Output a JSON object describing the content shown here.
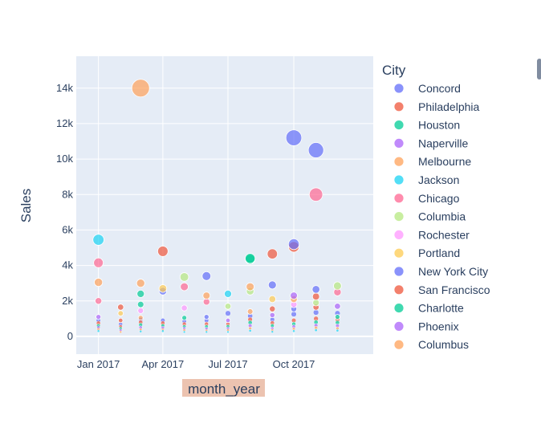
{
  "chart_data": {
    "type": "scatter",
    "xlabel": "month_year",
    "ylabel": "Sales",
    "x_ticks": [
      "Jan 2017",
      "Apr 2017",
      "Jul 2017",
      "Oct 2017"
    ],
    "x_tick_dates": [
      "2017-01-01",
      "2017-04-01",
      "2017-07-01",
      "2017-10-01"
    ],
    "x_range": [
      "2016-12-01",
      "2018-01-20"
    ],
    "y_ticks": [
      0,
      2000,
      4000,
      6000,
      8000,
      10000,
      12000,
      14000
    ],
    "y_tick_labels": [
      "0",
      "2k",
      "4k",
      "6k",
      "8k",
      "10k",
      "12k",
      "14k"
    ],
    "ylim": [
      -1000,
      15800
    ],
    "grid": true,
    "legend_title": "City",
    "legend_position": "right",
    "series": [
      {
        "name": "Concord",
        "color": "#636efa",
        "points": [
          {
            "x": "2017-10-01",
            "y": 11200
          },
          {
            "x": "2017-11-01",
            "y": 10500
          },
          {
            "x": "2017-06-01",
            "y": 3400
          },
          {
            "x": "2017-09-01",
            "y": 2900
          },
          {
            "x": "2017-11-01",
            "y": 2650
          },
          {
            "x": "2017-04-01",
            "y": 2550
          }
        ]
      },
      {
        "name": "Philadelphia",
        "color": "#ef553b",
        "points": [
          {
            "x": "2017-04-01",
            "y": 4800
          },
          {
            "x": "2017-09-01",
            "y": 4650
          },
          {
            "x": "2017-10-01",
            "y": 5050
          },
          {
            "x": "2017-11-01",
            "y": 2250
          },
          {
            "x": "2017-09-01",
            "y": 1550
          }
        ]
      },
      {
        "name": "Houston",
        "color": "#00cc96",
        "points": [
          {
            "x": "2017-08-01",
            "y": 4350
          },
          {
            "x": "2017-03-01",
            "y": 2400
          },
          {
            "x": "2017-03-01",
            "y": 1800
          }
        ]
      },
      {
        "name": "Naperville",
        "color": "#ab63fa",
        "points": [
          {
            "x": "2017-10-01",
            "y": 2300
          },
          {
            "x": "2017-12-01",
            "y": 1700
          },
          {
            "x": "2017-01-01",
            "y": 1100
          }
        ]
      },
      {
        "name": "Melbourne",
        "color": "#ffa15a",
        "points": [
          {
            "x": "2017-03-01",
            "y": 14000
          },
          {
            "x": "2017-03-01",
            "y": 3000
          },
          {
            "x": "2017-01-01",
            "y": 3050
          },
          {
            "x": "2017-08-01",
            "y": 2800
          },
          {
            "x": "2017-06-01",
            "y": 2300
          }
        ]
      },
      {
        "name": "Jackson",
        "color": "#19d3f3",
        "points": [
          {
            "x": "2017-01-01",
            "y": 5450
          },
          {
            "x": "2017-07-01",
            "y": 2400
          }
        ]
      },
      {
        "name": "Chicago",
        "color": "#ff6692",
        "points": [
          {
            "x": "2017-11-01",
            "y": 8000
          },
          {
            "x": "2017-01-01",
            "y": 4150
          },
          {
            "x": "2017-05-01",
            "y": 2800
          },
          {
            "x": "2017-01-01",
            "y": 2000
          },
          {
            "x": "2017-12-01",
            "y": 2500
          },
          {
            "x": "2017-06-01",
            "y": 1950
          }
        ]
      },
      {
        "name": "Columbia",
        "color": "#b6e880",
        "points": [
          {
            "x": "2017-05-01",
            "y": 3350
          },
          {
            "x": "2017-12-01",
            "y": 2850
          },
          {
            "x": "2017-08-01",
            "y": 2550
          },
          {
            "x": "2017-07-01",
            "y": 1700
          },
          {
            "x": "2017-11-01",
            "y": 1900
          }
        ]
      },
      {
        "name": "Rochester",
        "color": "#ff97ff",
        "points": [
          {
            "x": "2017-05-01",
            "y": 1600
          },
          {
            "x": "2017-03-01",
            "y": 1450
          },
          {
            "x": "2017-10-01",
            "y": 1800
          }
        ]
      },
      {
        "name": "Portland",
        "color": "#fecb52",
        "points": [
          {
            "x": "2017-04-01",
            "y": 2700
          },
          {
            "x": "2017-09-01",
            "y": 2100
          },
          {
            "x": "2017-02-01",
            "y": 1300
          }
        ]
      },
      {
        "name": "New York City",
        "color": "#636efa",
        "points": [
          {
            "x": "2017-10-01",
            "y": 5200
          },
          {
            "x": "2017-10-01",
            "y": 1550
          },
          {
            "x": "2017-06-01",
            "y": 1100
          }
        ]
      },
      {
        "name": "San Francisco",
        "color": "#ef553b",
        "points": [
          {
            "x": "2017-02-01",
            "y": 1650
          },
          {
            "x": "2017-11-01",
            "y": 1650
          },
          {
            "x": "2017-02-01",
            "y": 900
          }
        ]
      },
      {
        "name": "Charlotte",
        "color": "#00cc96",
        "points": [
          {
            "x": "2017-08-01",
            "y": 4400
          },
          {
            "x": "2017-12-01",
            "y": 1100
          },
          {
            "x": "2017-05-01",
            "y": 1050
          }
        ]
      },
      {
        "name": "Phoenix",
        "color": "#ab63fa",
        "points": [
          {
            "x": "2017-09-01",
            "y": 1200
          },
          {
            "x": "2017-07-01",
            "y": 900
          }
        ]
      },
      {
        "name": "Columbus",
        "color": "#ffa15a",
        "points": [
          {
            "x": "2017-10-01",
            "y": 2100
          },
          {
            "x": "2017-08-01",
            "y": 1400
          },
          {
            "x": "2017-03-01",
            "y": 1050
          }
        ]
      }
    ],
    "small_points": [
      {
        "x": "2017-01-01",
        "values": [
          900,
          750,
          600,
          500,
          400,
          300
        ]
      },
      {
        "x": "2017-02-01",
        "values": [
          700,
          550,
          450,
          350,
          250
        ]
      },
      {
        "x": "2017-03-01",
        "values": [
          950,
          800,
          650,
          500,
          380,
          280
        ]
      },
      {
        "x": "2017-04-01",
        "values": [
          900,
          750,
          600,
          480,
          380,
          300
        ]
      },
      {
        "x": "2017-05-01",
        "values": [
          850,
          700,
          550,
          450,
          350,
          250
        ]
      },
      {
        "x": "2017-06-01",
        "values": [
          900,
          700,
          550,
          430,
          330,
          250
        ]
      },
      {
        "x": "2017-07-01",
        "values": [
          1300,
          700,
          560,
          450,
          350,
          250
        ]
      },
      {
        "x": "2017-08-01",
        "values": [
          1150,
          950,
          780,
          600,
          450,
          320
        ]
      },
      {
        "x": "2017-09-01",
        "values": [
          950,
          760,
          600,
          450,
          350,
          260
        ]
      },
      {
        "x": "2017-10-01",
        "values": [
          1250,
          900,
          700,
          550,
          420,
          300
        ]
      },
      {
        "x": "2017-11-01",
        "values": [
          1350,
          1000,
          800,
          620,
          480,
          350
        ]
      },
      {
        "x": "2017-12-01",
        "values": [
          1300,
          950,
          780,
          600,
          450,
          330
        ]
      }
    ]
  },
  "palette": [
    "#636efa",
    "#ef553b",
    "#00cc96",
    "#ab63fa",
    "#ffa15a",
    "#19d3f3",
    "#ff6692",
    "#b6e880",
    "#ff97ff",
    "#fecb52"
  ]
}
